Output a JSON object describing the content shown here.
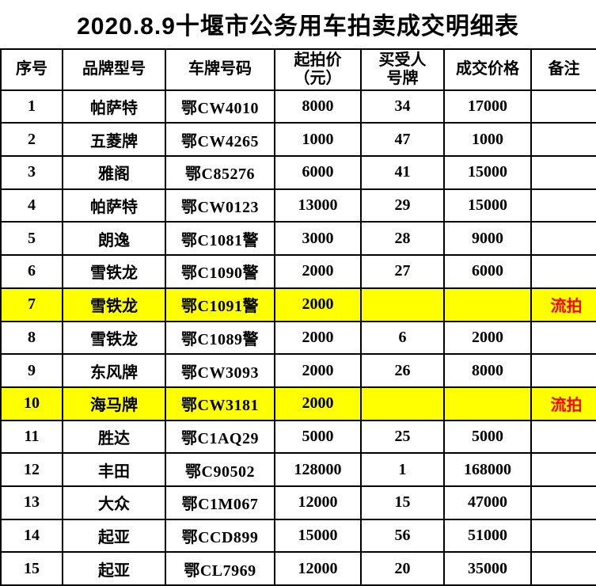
{
  "page": {
    "title": "2020.8.9十堰市公务用车拍卖成交明细表"
  },
  "colors": {
    "highlight_row_background": "#ffff00",
    "failed_remark_text": "#ff0000",
    "table_border": "#000000",
    "page_background": "#ffffff"
  },
  "table": {
    "columns": [
      "序号",
      "品牌型号",
      "车牌号码",
      "起拍价\n（元）",
      "买受人\n号牌",
      "成交价格",
      "备注"
    ],
    "rows": [
      {
        "no": "1",
        "brand": "帕萨特",
        "plate": "鄂CW4010",
        "start_price": "8000",
        "buyer_no": "34",
        "deal_price": "17000",
        "remark": "",
        "highlight": false
      },
      {
        "no": "2",
        "brand": "五菱牌",
        "plate": "鄂CW4265",
        "start_price": "1000",
        "buyer_no": "47",
        "deal_price": "1000",
        "remark": "",
        "highlight": false
      },
      {
        "no": "3",
        "brand": "雅阁",
        "plate": "鄂C85276",
        "start_price": "6000",
        "buyer_no": "41",
        "deal_price": "15000",
        "remark": "",
        "highlight": false
      },
      {
        "no": "4",
        "brand": "帕萨特",
        "plate": "鄂CW0123",
        "start_price": "13000",
        "buyer_no": "29",
        "deal_price": "15000",
        "remark": "",
        "highlight": false
      },
      {
        "no": "5",
        "brand": "朗逸",
        "plate": "鄂C1081警",
        "start_price": "3000",
        "buyer_no": "28",
        "deal_price": "9000",
        "remark": "",
        "highlight": false
      },
      {
        "no": "6",
        "brand": "雪铁龙",
        "plate": "鄂C1090警",
        "start_price": "2000",
        "buyer_no": "27",
        "deal_price": "6000",
        "remark": "",
        "highlight": false
      },
      {
        "no": "7",
        "brand": "雪铁龙",
        "plate": "鄂C1091警",
        "start_price": "2000",
        "buyer_no": "",
        "deal_price": "",
        "remark": "流拍",
        "highlight": true
      },
      {
        "no": "8",
        "brand": "雪铁龙",
        "plate": "鄂C1089警",
        "start_price": "2000",
        "buyer_no": "6",
        "deal_price": "2000",
        "remark": "",
        "highlight": false
      },
      {
        "no": "9",
        "brand": "东风牌",
        "plate": "鄂CW3093",
        "start_price": "2000",
        "buyer_no": "26",
        "deal_price": "8000",
        "remark": "",
        "highlight": false
      },
      {
        "no": "10",
        "brand": "海马牌",
        "plate": "鄂CW3181",
        "start_price": "2000",
        "buyer_no": "",
        "deal_price": "",
        "remark": "流拍",
        "highlight": true
      },
      {
        "no": "11",
        "brand": "胜达",
        "plate": "鄂C1AQ29",
        "start_price": "5000",
        "buyer_no": "25",
        "deal_price": "5000",
        "remark": "",
        "highlight": false
      },
      {
        "no": "12",
        "brand": "丰田",
        "plate": "鄂C90502",
        "start_price": "128000",
        "buyer_no": "1",
        "deal_price": "168000",
        "remark": "",
        "highlight": false
      },
      {
        "no": "13",
        "brand": "大众",
        "plate": "鄂C1M067",
        "start_price": "12000",
        "buyer_no": "15",
        "deal_price": "47000",
        "remark": "",
        "highlight": false
      },
      {
        "no": "14",
        "brand": "起亚",
        "plate": "鄂CCD899",
        "start_price": "15000",
        "buyer_no": "56",
        "deal_price": "51000",
        "remark": "",
        "highlight": false
      },
      {
        "no": "15",
        "brand": "起亚",
        "plate": "鄂CL7969",
        "start_price": "12000",
        "buyer_no": "20",
        "deal_price": "35000",
        "remark": "",
        "highlight": false
      }
    ]
  }
}
